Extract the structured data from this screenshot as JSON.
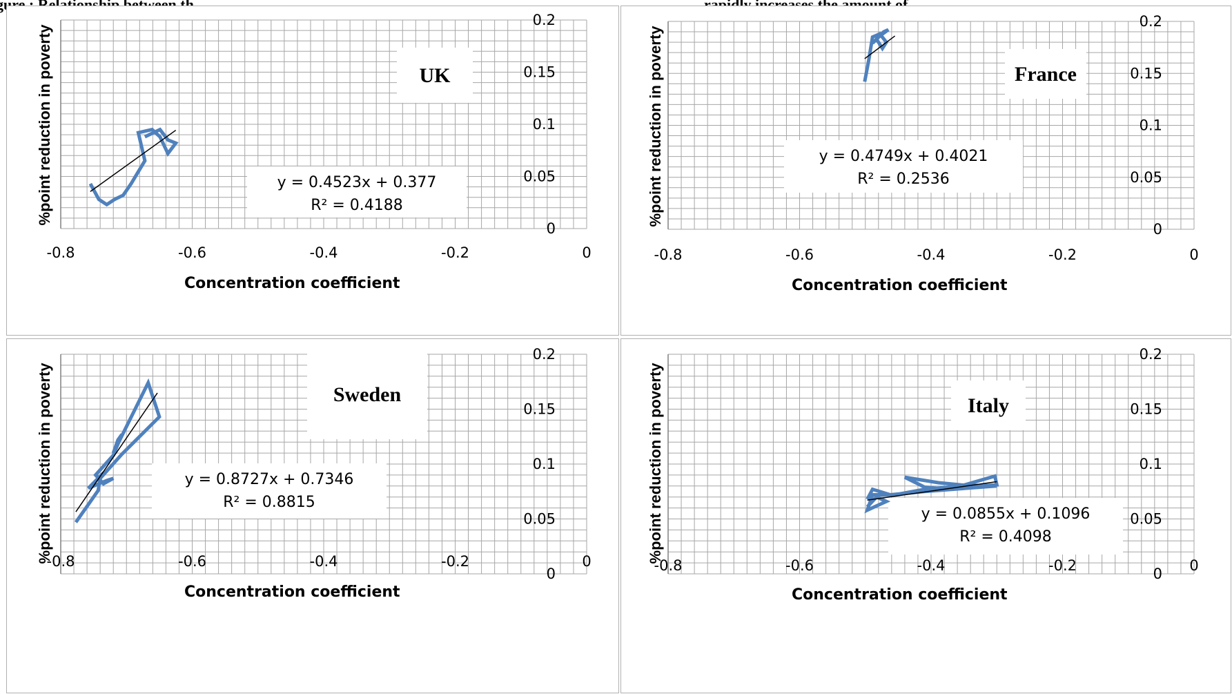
{
  "caption": {
    "left": "gure : Relationship between th",
    "right": "rapidly increases the amount of"
  },
  "colors": {
    "series": "#4f81bd",
    "trend": "#000000",
    "grid": "#a6a6a6"
  },
  "chart_data": [
    {
      "type": "line",
      "title": "UK",
      "xlabel": "Concentration coefficient",
      "ylabel": "%point reduction in poverty",
      "xlim": [
        -0.8,
        0
      ],
      "ylim": [
        0,
        0.2
      ],
      "xticks": [
        "-0.8",
        "-0.6",
        "-0.4",
        "-0.2",
        "0"
      ],
      "yticks": [
        "0",
        "0.05",
        "0.1",
        "0.15",
        "0.2"
      ],
      "grid": true,
      "series": [
        {
          "x": [
            -0.755,
            -0.742,
            -0.73,
            -0.718,
            -0.705,
            -0.693,
            -0.672,
            -0.682,
            -0.661,
            -0.649,
            -0.637,
            -0.625,
            -0.637,
            -0.649,
            -0.672
          ],
          "y": [
            0.043,
            0.028,
            0.023,
            0.028,
            0.032,
            0.043,
            0.065,
            0.092,
            0.095,
            0.088,
            0.072,
            0.082,
            0.085,
            0.095,
            0.088
          ]
        }
      ],
      "trendline": {
        "equation": "y = 0.4523x + 0.377",
        "r2": "R² = 0.4188",
        "x_range": [
          -0.755,
          -0.625
        ]
      }
    },
    {
      "type": "line",
      "title": "France",
      "xlabel": "Concentration coefficient",
      "ylabel": "%point reduction in poverty",
      "xlim": [
        -0.8,
        0
      ],
      "ylim": [
        0,
        0.2
      ],
      "xticks": [
        "-0.8",
        "-0.6",
        "-0.4",
        "-0.2",
        "0"
      ],
      "yticks": [
        "0",
        "0.05",
        "0.1",
        "0.15",
        "0.2"
      ],
      "grid": true,
      "series": [
        {
          "x": [
            -0.501,
            -0.495,
            -0.489,
            -0.478,
            -0.468,
            -0.474,
            -0.483,
            -0.472,
            -0.465,
            -0.478,
            -0.489
          ],
          "y": [
            0.142,
            0.162,
            0.185,
            0.188,
            0.18,
            0.174,
            0.183,
            0.19,
            0.192,
            0.186,
            0.179
          ]
        }
      ],
      "trendline": {
        "equation": "y = 0.4749x + 0.4021",
        "r2": "R² = 0.2536",
        "x_range": [
          -0.501,
          -0.455
        ]
      }
    },
    {
      "type": "line",
      "title": "Sweden",
      "xlabel": "Concentration coefficient",
      "ylabel": "%point reduction in poverty",
      "xlim": [
        -0.8,
        0
      ],
      "ylim": [
        0,
        0.2
      ],
      "xticks": [
        "-0.8",
        "-0.6",
        "-0.4",
        "-0.2",
        "0"
      ],
      "yticks": [
        "0",
        "0.05",
        "0.1",
        "0.15",
        "0.2"
      ],
      "grid": true,
      "series": [
        {
          "x": [
            -0.777,
            -0.743,
            -0.74,
            -0.758,
            -0.73,
            -0.72,
            -0.735,
            -0.747,
            -0.72,
            -0.707,
            -0.713,
            -0.72,
            -0.667,
            -0.65,
            -0.707,
            -0.74
          ],
          "y": [
            0.047,
            0.076,
            0.089,
            0.078,
            0.085,
            0.087,
            0.082,
            0.09,
            0.108,
            0.127,
            0.122,
            0.11,
            0.174,
            0.143,
            0.109,
            0.087
          ]
        }
      ],
      "trendline": {
        "equation": "y = 0.8727x + 0.7346",
        "r2": "R² = 0.8815",
        "x_range": [
          -0.777,
          -0.653
        ]
      }
    },
    {
      "type": "line",
      "title": "Italy",
      "xlabel": "Concentration coefficient",
      "ylabel": "%point reduction in poverty",
      "xlim": [
        -0.8,
        0
      ],
      "ylim": [
        0,
        0.2
      ],
      "xticks": [
        "-0.8",
        "-0.6",
        "-0.4",
        "-0.2",
        "0"
      ],
      "yticks": [
        "0",
        "0.05",
        "0.1",
        "0.15",
        "0.2"
      ],
      "grid": true,
      "series": [
        {
          "x": [
            -0.497,
            -0.483,
            -0.468,
            -0.497,
            -0.489,
            -0.455,
            -0.41,
            -0.372,
            -0.3,
            -0.303,
            -0.372,
            -0.41,
            -0.44,
            -0.389,
            -0.354,
            -0.3,
            -0.346,
            -0.41,
            -0.462,
            -0.489,
            -0.497
          ],
          "y": [
            0.061,
            0.07,
            0.066,
            0.058,
            0.072,
            0.072,
            0.077,
            0.079,
            0.081,
            0.089,
            0.077,
            0.079,
            0.088,
            0.083,
            0.081,
            0.08,
            0.078,
            0.075,
            0.072,
            0.077,
            0.068
          ]
        }
      ],
      "trendline": {
        "equation": "y = 0.0855x + 0.1096",
        "r2": "R² = 0.4098",
        "x_range": [
          -0.497,
          -0.3
        ]
      }
    }
  ]
}
